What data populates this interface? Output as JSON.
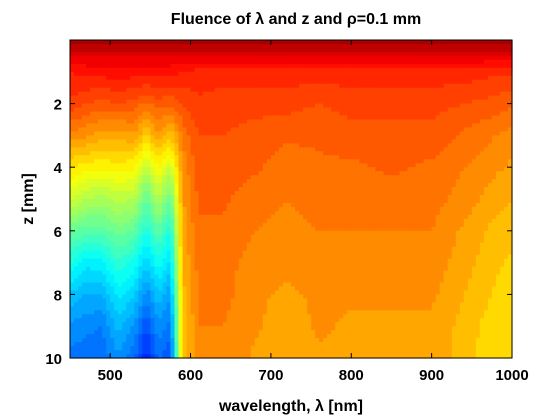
{
  "chart_data": {
    "type": "heatmap",
    "title": "Fluence of λ and z and ρ=0.1 mm",
    "xlabel": "wavelength, λ [nm]",
    "ylabel": "z [mm]",
    "xlim": [
      450,
      1000
    ],
    "ylim": [
      0,
      10
    ],
    "y_reversed": true,
    "x_ticks": [
      500,
      600,
      700,
      800,
      900,
      1000
    ],
    "y_ticks": [
      2,
      4,
      6,
      8,
      10
    ],
    "colormap": "jet (filled contours)",
    "grid": false,
    "legend": "none",
    "wavelengths": [
      450,
      470,
      490,
      510,
      530,
      545,
      560,
      575,
      590,
      610,
      640,
      680,
      720,
      760,
      800,
      850,
      900,
      940,
      980,
      1000
    ],
    "depths": [
      0,
      0.5,
      1,
      2,
      3,
      4,
      5,
      6,
      7,
      8,
      9,
      10
    ],
    "relative_value": [
      [
        0.97,
        0.97,
        0.97,
        0.97,
        0.97,
        0.97,
        0.97,
        0.97,
        0.97,
        0.97,
        0.97,
        0.97,
        0.97,
        0.97,
        0.97,
        0.97,
        0.97,
        0.97,
        0.97,
        0.97
      ],
      [
        0.9,
        0.9,
        0.9,
        0.9,
        0.9,
        0.9,
        0.9,
        0.9,
        0.9,
        0.9,
        0.9,
        0.9,
        0.9,
        0.9,
        0.9,
        0.9,
        0.9,
        0.9,
        0.9,
        0.9
      ],
      [
        0.85,
        0.86,
        0.86,
        0.87,
        0.86,
        0.86,
        0.86,
        0.86,
        0.85,
        0.84,
        0.84,
        0.84,
        0.84,
        0.84,
        0.84,
        0.84,
        0.84,
        0.84,
        0.83,
        0.83
      ],
      [
        0.82,
        0.8,
        0.79,
        0.8,
        0.79,
        0.77,
        0.79,
        0.78,
        0.8,
        0.82,
        0.81,
        0.81,
        0.81,
        0.8,
        0.81,
        0.81,
        0.81,
        0.8,
        0.79,
        0.78
      ],
      [
        0.74,
        0.73,
        0.71,
        0.71,
        0.72,
        0.67,
        0.72,
        0.68,
        0.76,
        0.8,
        0.8,
        0.79,
        0.78,
        0.78,
        0.79,
        0.79,
        0.79,
        0.77,
        0.75,
        0.74
      ],
      [
        0.65,
        0.64,
        0.63,
        0.64,
        0.63,
        0.56,
        0.63,
        0.57,
        0.73,
        0.79,
        0.79,
        0.78,
        0.76,
        0.77,
        0.77,
        0.78,
        0.77,
        0.75,
        0.73,
        0.72
      ],
      [
        0.58,
        0.55,
        0.54,
        0.56,
        0.55,
        0.47,
        0.55,
        0.47,
        0.72,
        0.78,
        0.78,
        0.76,
        0.75,
        0.76,
        0.76,
        0.76,
        0.76,
        0.74,
        0.71,
        0.7
      ],
      [
        0.48,
        0.46,
        0.46,
        0.49,
        0.47,
        0.4,
        0.47,
        0.4,
        0.71,
        0.77,
        0.77,
        0.75,
        0.74,
        0.75,
        0.75,
        0.75,
        0.75,
        0.72,
        0.69,
        0.69
      ],
      [
        0.4,
        0.36,
        0.37,
        0.42,
        0.39,
        0.33,
        0.39,
        0.34,
        0.7,
        0.76,
        0.76,
        0.74,
        0.73,
        0.74,
        0.74,
        0.74,
        0.74,
        0.71,
        0.68,
        0.67
      ],
      [
        0.32,
        0.3,
        0.3,
        0.36,
        0.33,
        0.26,
        0.32,
        0.28,
        0.69,
        0.75,
        0.76,
        0.73,
        0.72,
        0.73,
        0.73,
        0.73,
        0.73,
        0.7,
        0.67,
        0.66
      ],
      [
        0.27,
        0.26,
        0.25,
        0.31,
        0.27,
        0.2,
        0.27,
        0.24,
        0.68,
        0.75,
        0.75,
        0.73,
        0.71,
        0.73,
        0.72,
        0.72,
        0.72,
        0.69,
        0.66,
        0.65
      ],
      [
        0.24,
        0.23,
        0.23,
        0.27,
        0.23,
        0.16,
        0.23,
        0.2,
        0.68,
        0.74,
        0.75,
        0.72,
        0.71,
        0.72,
        0.72,
        0.72,
        0.72,
        0.69,
        0.65,
        0.65
      ]
    ]
  }
}
